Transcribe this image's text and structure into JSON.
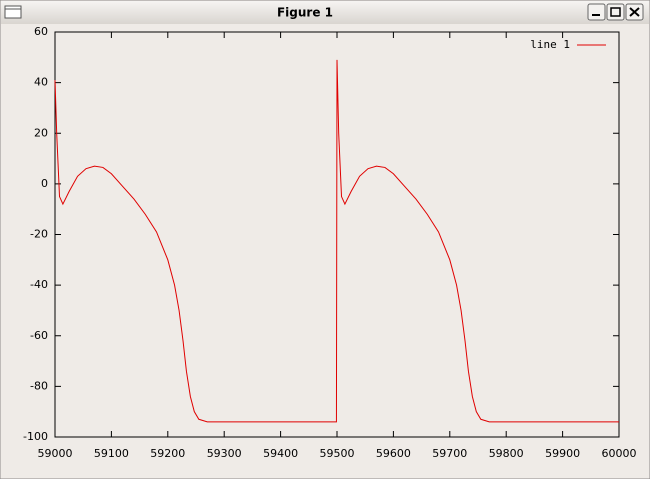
{
  "window_title": "Figure 1",
  "chart_data": {
    "type": "line",
    "x": [
      59000,
      59003,
      59008,
      59014,
      59025,
      59040,
      59055,
      59070,
      59085,
      59100,
      59120,
      59140,
      59160,
      59180,
      59200,
      59212,
      59220,
      59227,
      59233,
      59240,
      59247,
      59255,
      59270,
      59499,
      59500,
      59503,
      59508,
      59514,
      59525,
      59540,
      59555,
      59570,
      59585,
      59600,
      59620,
      59640,
      59660,
      59680,
      59700,
      59712,
      59720,
      59727,
      59733,
      59740,
      59747,
      59755,
      59770,
      59999,
      60000
    ],
    "series": [
      {
        "name": "line 1",
        "color": "#e00000",
        "values": [
          41,
          20,
          -5,
          -8,
          -3,
          3,
          6,
          7,
          6.5,
          4,
          -1,
          -6,
          -12,
          -19,
          -30,
          -40,
          -50,
          -62,
          -74,
          -84,
          -90,
          -93,
          -94,
          -94,
          49,
          20,
          -5,
          -8,
          -3,
          3,
          6,
          7,
          6.5,
          4,
          -1,
          -6,
          -12,
          -19,
          -30,
          -40,
          -50,
          -62,
          -74,
          -84,
          -90,
          -93,
          -94,
          -94,
          -94
        ]
      }
    ],
    "xlim": [
      59000,
      60000
    ],
    "xticks": [
      59000,
      59100,
      59200,
      59300,
      59400,
      59500,
      59600,
      59700,
      59800,
      59900,
      60000
    ],
    "ylim": [
      -100,
      60
    ],
    "yticks": [
      -100,
      -80,
      -60,
      -40,
      -20,
      0,
      20,
      40,
      60
    ],
    "legend": "top-right"
  }
}
